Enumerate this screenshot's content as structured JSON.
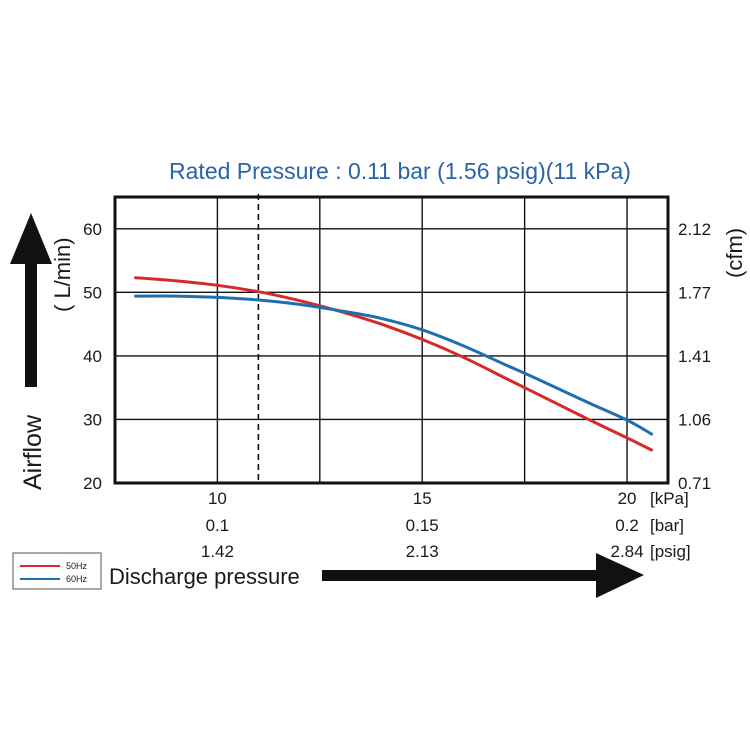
{
  "chart_data": {
    "type": "line",
    "title": "Rated Pressure : 0.11 bar (1.56 psig)(11 kPa)",
    "xlabel": "Discharge pressure",
    "ylabel_left_word": "Airflow",
    "ylabel_left_unit": "( L/min)",
    "ylabel_right_unit": "(cfm)",
    "xlim": [
      7.5,
      21
    ],
    "ylim": [
      20,
      65
    ],
    "y_ticks_left": [
      {
        "value": 20,
        "label": "20"
      },
      {
        "value": 30,
        "label": "30"
      },
      {
        "value": 40,
        "label": "40"
      },
      {
        "value": 50,
        "label": "50"
      },
      {
        "value": 60,
        "label": "60"
      }
    ],
    "y_ticks_right": [
      {
        "value": 20,
        "label": "0.71"
      },
      {
        "value": 30,
        "label": "1.06"
      },
      {
        "value": 40,
        "label": "1.41"
      },
      {
        "value": 50,
        "label": "1.77"
      },
      {
        "value": 60,
        "label": "2.12"
      }
    ],
    "x_ticks": [
      {
        "value": 10,
        "kpa": "10",
        "bar": "0.1",
        "psig": "1.42"
      },
      {
        "value": 15,
        "kpa": "15",
        "bar": "0.15",
        "psig": "2.13"
      },
      {
        "value": 20,
        "kpa": "20",
        "bar": "0.2",
        "psig": "2.84"
      }
    ],
    "x_unit_labels": {
      "kpa": "[kPa]",
      "bar": "[bar]",
      "psig": "[psig]"
    },
    "vertical_gridlines": [
      7.5,
      10,
      12.5,
      15,
      17.5,
      20,
      21
    ],
    "horizontal_gridlines": [
      30,
      40,
      50,
      60
    ],
    "rated_line_x": 11,
    "series": [
      {
        "name": "50Hz",
        "color": "#d42a2a",
        "x": [
          8,
          9,
          10,
          11,
          12,
          13,
          14,
          15,
          16,
          17,
          18,
          19,
          20,
          20.6
        ],
        "y": [
          52.3,
          51.8,
          51.1,
          50.1,
          48.7,
          47.0,
          45.0,
          42.6,
          39.8,
          36.6,
          33.4,
          30.2,
          27.1,
          25.2
        ]
      },
      {
        "name": "60Hz",
        "color": "#1f6eb0",
        "x": [
          8,
          9,
          10,
          11,
          12,
          13,
          14,
          15,
          16,
          17,
          18,
          19,
          20,
          20.6
        ],
        "y": [
          49.4,
          49.4,
          49.2,
          48.8,
          48.1,
          47.1,
          45.9,
          44.1,
          41.6,
          38.7,
          35.8,
          32.8,
          29.9,
          27.7
        ]
      }
    ],
    "legend_position": "bottom-left"
  }
}
